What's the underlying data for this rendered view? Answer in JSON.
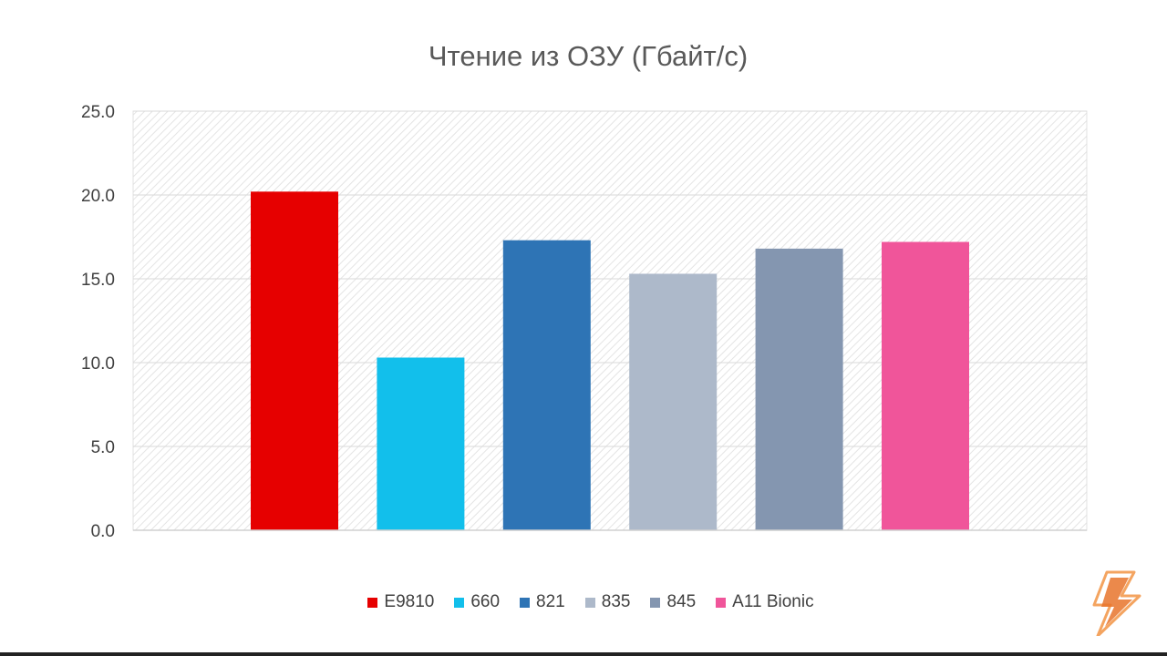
{
  "chart_data": {
    "type": "bar",
    "title": "Чтение из ОЗУ (Гбайт/с)",
    "xlabel": "",
    "ylabel": "",
    "categories": [
      "E9810",
      "660",
      "821",
      "835",
      "845",
      "A11 Bionic"
    ],
    "values": [
      20.2,
      10.3,
      17.3,
      15.3,
      16.8,
      17.2
    ],
    "colors": [
      "#e60000",
      "#12bfeb",
      "#2e74b5",
      "#adb9ca",
      "#8496b0",
      "#f0559a"
    ],
    "ylim": [
      0,
      25
    ],
    "yticks": [
      "0.0",
      "5.0",
      "10.0",
      "15.0",
      "20.0",
      "25.0"
    ],
    "grid": true,
    "legend_position": "bottom"
  },
  "logo": {
    "icon": "lightning-bolt-icon",
    "colors": [
      "#f4a460",
      "#e8742c"
    ]
  }
}
